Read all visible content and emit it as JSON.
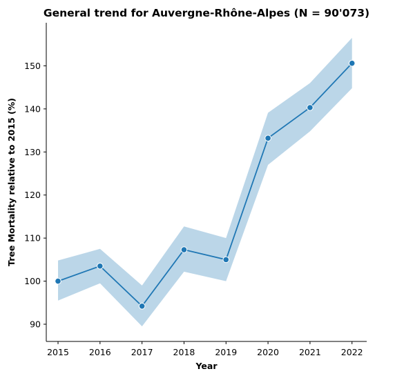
{
  "chart_data": {
    "type": "line",
    "title": "General trend for Auvergne-Rhône-Alpes  (N = 90'073)",
    "xlabel": "Year",
    "ylabel": "Tree Mortality relative to 2015 (%)",
    "x": [
      2015,
      2016,
      2017,
      2018,
      2019,
      2020,
      2021,
      2022
    ],
    "xticks": [
      "2015",
      "2016",
      "2017",
      "2018",
      "2019",
      "2020",
      "2021",
      "2022"
    ],
    "yticks": [
      90,
      100,
      110,
      120,
      130,
      140,
      150
    ],
    "ylim": [
      86,
      160
    ],
    "xlim": [
      2014.72,
      2022.35
    ],
    "grid": false,
    "legend": "none",
    "series": [
      {
        "values": [
          100,
          103.5,
          94.2,
          107.3,
          105,
          133.2,
          140.3,
          150.6
        ],
        "ci_lower": [
          95.5,
          99.5,
          89.5,
          102.2,
          100,
          127,
          134.8,
          144.8
        ],
        "ci_upper": [
          104.8,
          107.5,
          99,
          112.7,
          110,
          139.1,
          146,
          156.5
        ],
        "color": "#1f77b4",
        "band_color": "#1f77b4",
        "band_opacity": 0.3
      }
    ]
  }
}
